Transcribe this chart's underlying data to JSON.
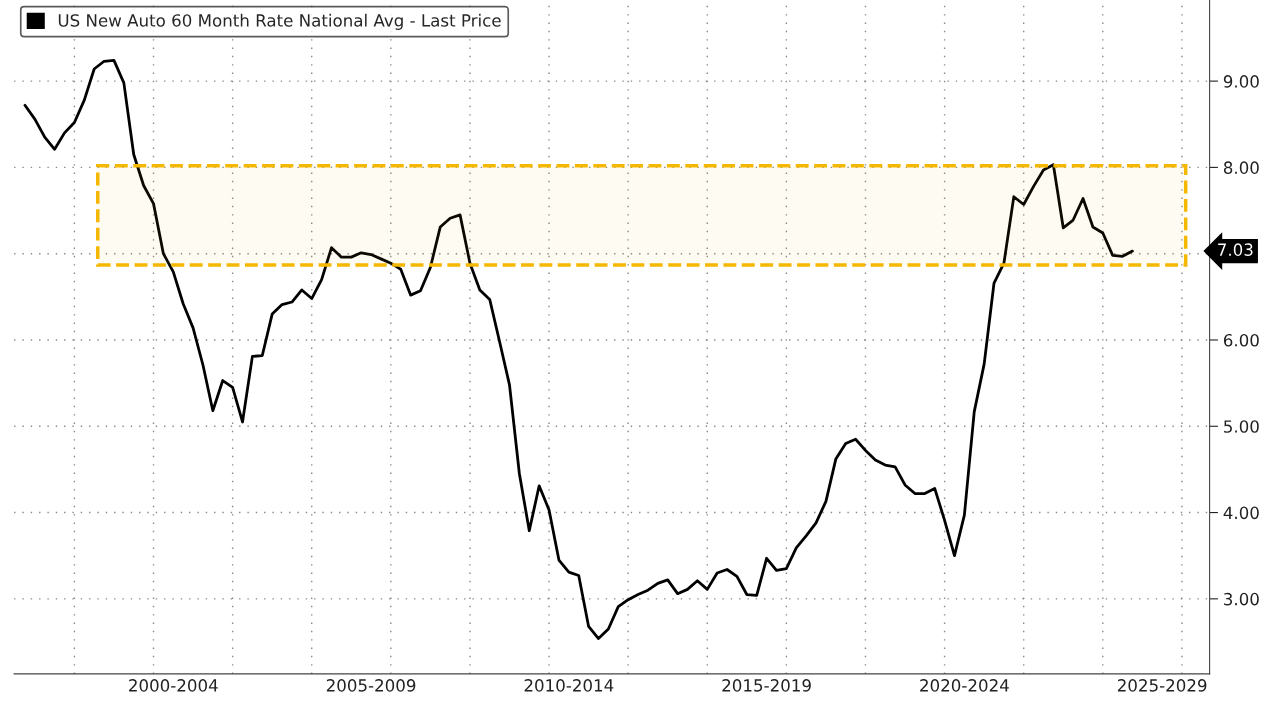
{
  "chart_data": {
    "type": "line",
    "categories": [
      null,
      null,
      null,
      null,
      null,
      null,
      null,
      null,
      null,
      null,
      null,
      null,
      null,
      null,
      null,
      "2000-2004",
      null,
      null,
      null,
      null,
      null,
      null,
      null,
      null,
      null,
      null,
      null,
      null,
      null,
      null,
      null,
      null,
      null,
      null,
      null,
      "2005-2009",
      null,
      null,
      null,
      null,
      null,
      null,
      null,
      null,
      null,
      null,
      null,
      null,
      null,
      null,
      null,
      null,
      null,
      null,
      null,
      "2010-2014",
      null,
      null,
      null,
      null,
      null,
      null,
      null,
      null,
      null,
      null,
      null,
      null,
      null,
      null,
      null,
      null,
      null,
      null,
      null,
      "2015-2019",
      null,
      null,
      null,
      null,
      null,
      null,
      null,
      null,
      null,
      null,
      null,
      null,
      null,
      null,
      null,
      null,
      null,
      null,
      null,
      "2020-2024",
      null,
      null,
      null,
      null,
      null,
      null,
      null,
      null,
      null,
      null,
      null,
      null,
      null,
      null,
      null,
      null,
      null,
      null,
      null,
      "2025-2029",
      null,
      null,
      null,
      null
    ],
    "series": [
      {
        "name": "US New Auto 60 Month Rate National Avg - Last Price",
        "color": "#000000",
        "values": [
          8.72,
          8.56,
          8.35,
          8.21,
          8.4,
          8.52,
          8.78,
          9.14,
          9.23,
          9.24,
          8.98,
          8.15,
          7.79,
          7.58,
          7.0,
          6.79,
          6.42,
          6.14,
          5.71,
          5.18,
          5.53,
          5.45,
          5.05,
          5.81,
          5.82,
          6.3,
          6.41,
          6.44,
          6.58,
          6.48,
          6.7,
          7.07,
          6.96,
          6.96,
          7.01,
          6.99,
          6.94,
          6.89,
          6.82,
          6.52,
          6.57,
          6.84,
          7.31,
          7.41,
          7.45,
          6.89,
          6.58,
          6.47,
          5.98,
          5.48,
          4.45,
          3.79,
          4.31,
          4.03,
          3.45,
          3.31,
          3.27,
          2.68,
          2.54,
          2.65,
          2.91,
          2.99,
          3.05,
          3.1,
          3.18,
          3.22,
          3.06,
          3.11,
          3.21,
          3.11,
          3.3,
          3.34,
          3.26,
          3.05,
          3.04,
          3.47,
          3.33,
          3.35,
          3.59,
          3.73,
          3.88,
          4.13,
          4.62,
          4.8,
          4.85,
          4.72,
          4.61,
          4.55,
          4.53,
          4.32,
          4.22,
          4.22,
          4.28,
          3.91,
          3.5,
          3.97,
          5.17,
          5.72,
          6.66,
          6.89,
          7.66,
          7.57,
          7.78,
          7.97,
          8.03,
          7.3,
          7.39,
          7.64,
          7.31,
          7.24,
          6.98,
          6.97,
          7.03,
          null,
          null,
          null,
          null,
          null,
          null,
          null
        ]
      }
    ],
    "ylim": [
      2.13,
      9.94
    ],
    "yticks": [
      {
        "value": 3,
        "label": "3.00"
      },
      {
        "value": 4,
        "label": "4.00"
      },
      {
        "value": 5,
        "label": "5.00"
      },
      {
        "value": 6,
        "label": "6.00"
      },
      {
        "value": 7,
        "label": null
      },
      {
        "value": 8,
        "label": "8.00"
      },
      {
        "value": 9,
        "label": "9.00"
      }
    ],
    "grid": true,
    "legend": "top left",
    "line_style": "solid",
    "marker": "none",
    "bands": [
      {
        "axis": "y",
        "from": 6.87,
        "to": 8.02,
        "color": "#f5b800"
      }
    ],
    "annotations": [
      "7.03"
    ]
  }
}
